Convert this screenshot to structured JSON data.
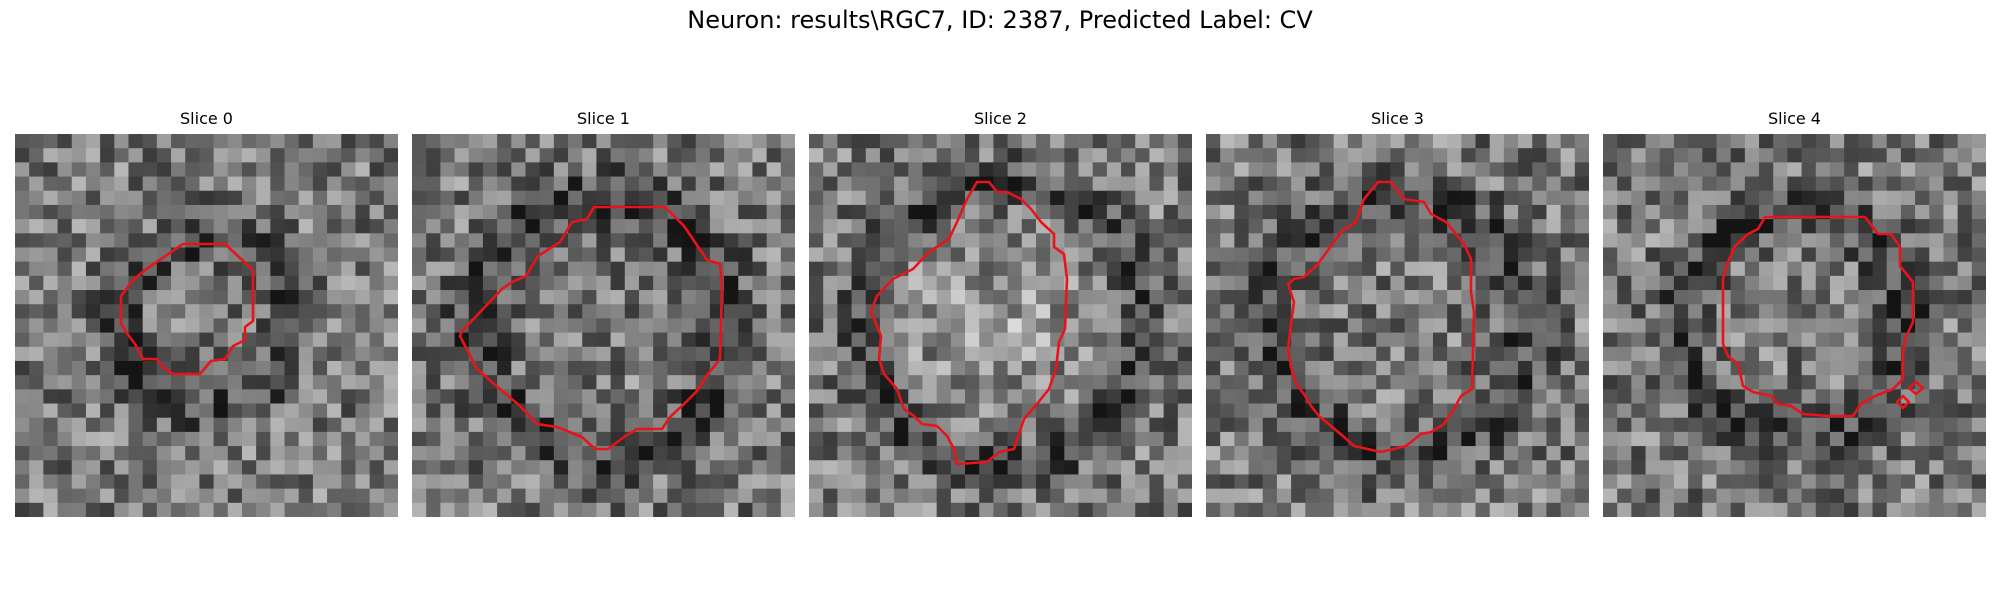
{
  "figure": {
    "title": "Neuron: results\\RGC7, ID: 2387, Predicted Label: CV"
  },
  "panels": [
    {
      "title": "Slice 0",
      "seed": 11,
      "bias": "ring-small"
    },
    {
      "title": "Slice 1",
      "seed": 23,
      "bias": "ring-large"
    },
    {
      "title": "Slice 2",
      "seed": 37,
      "bias": "bright-center"
    },
    {
      "title": "Slice 3",
      "seed": 41,
      "bias": "ring-large"
    },
    {
      "title": "Slice 4",
      "seed": 53,
      "bias": "ring-medium"
    }
  ],
  "colors": {
    "contour": "#e8141a",
    "background": "#ffffff"
  },
  "colormap": "gray",
  "grid": {
    "cols": 27,
    "rows": 27
  }
}
